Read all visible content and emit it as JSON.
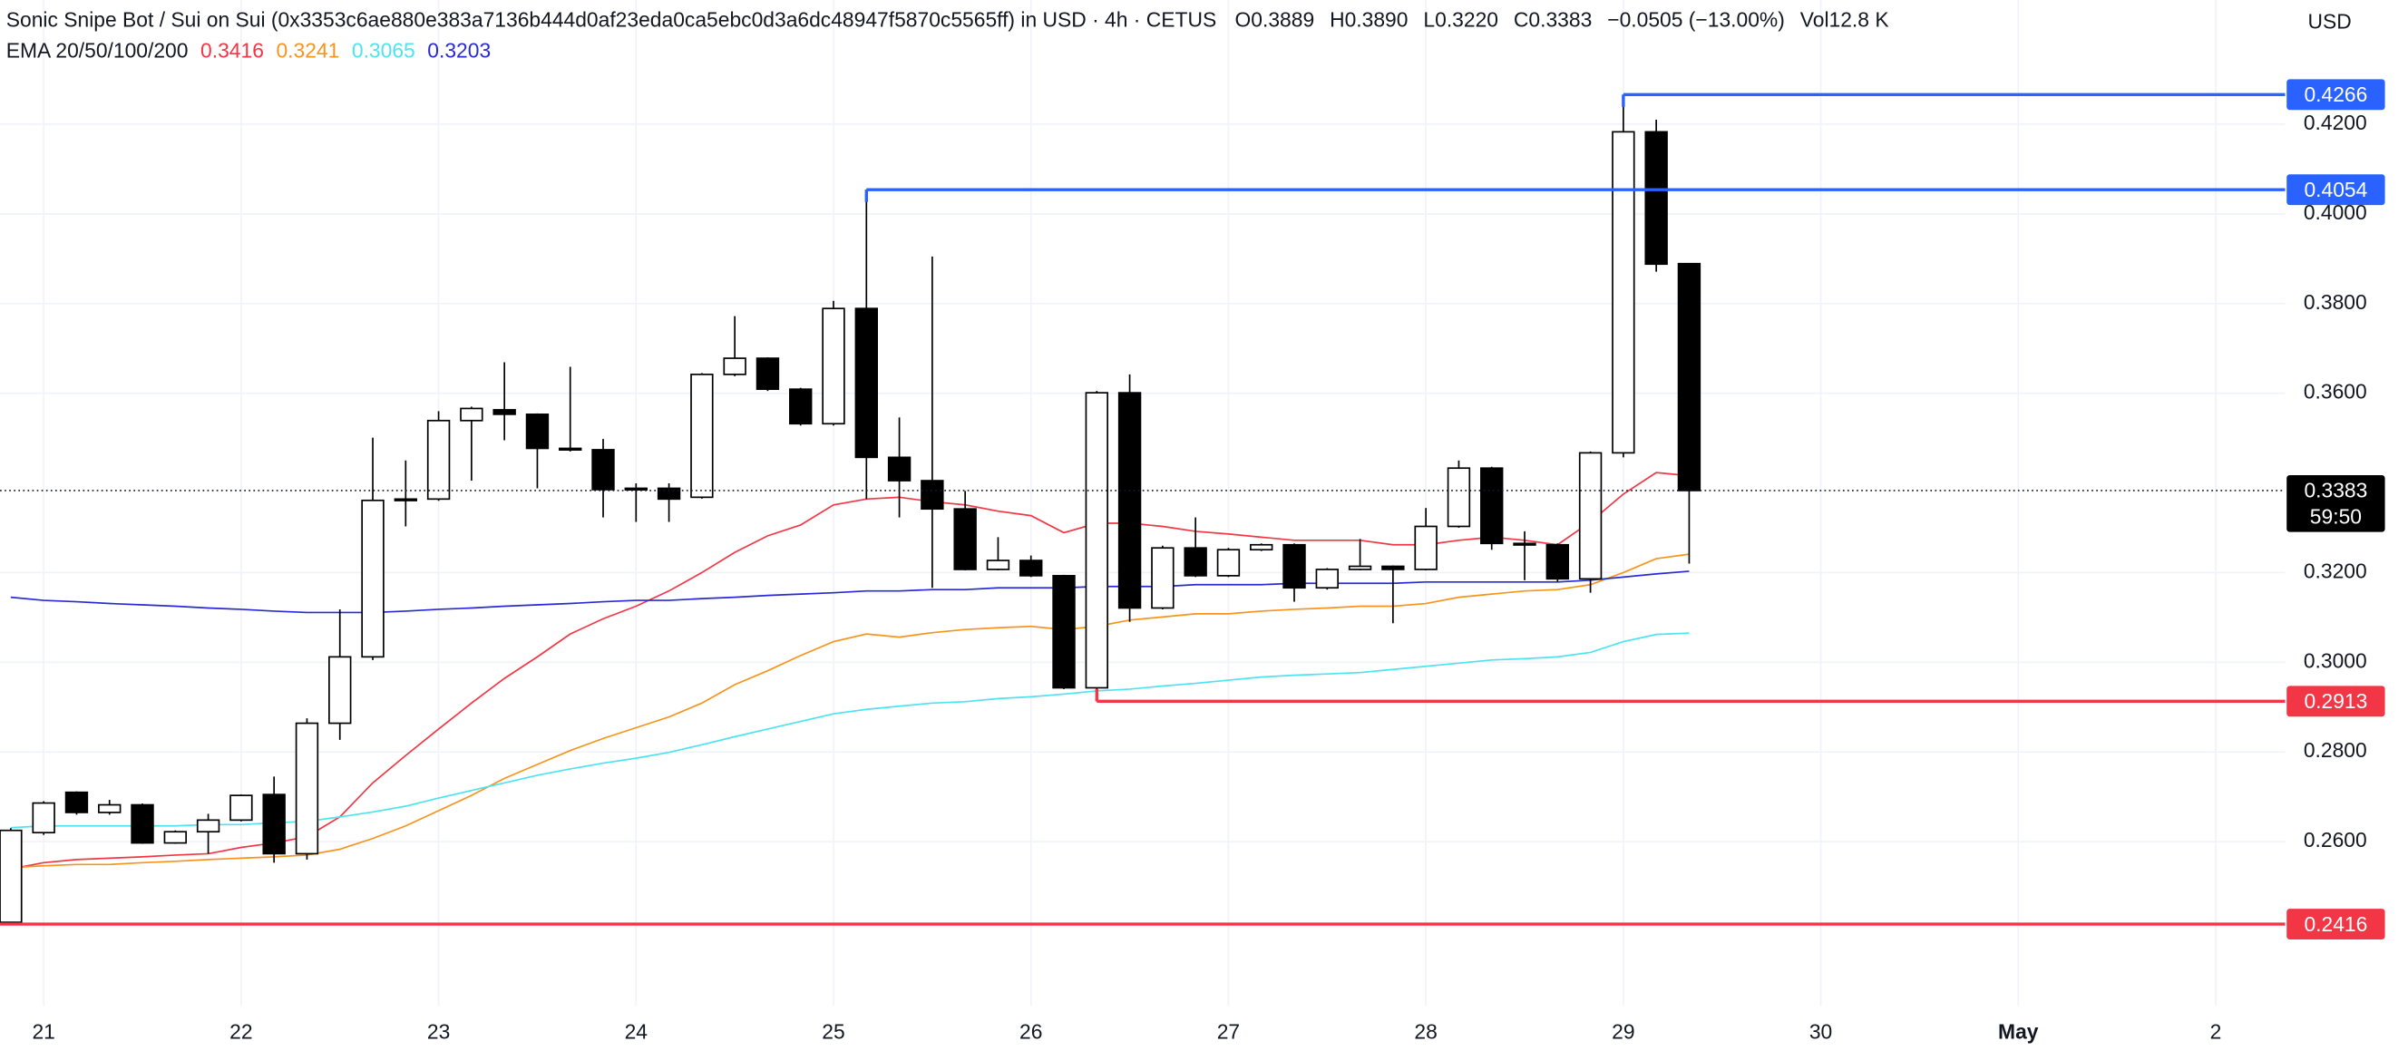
{
  "chart_data": {
    "type": "candlestick",
    "header": {
      "title": "Sonic Snipe Bot / Sui on Sui (0x3353c6ae880e383a7136b444d0af23eda0ca5ebc0d3a6dc48947f5870c5565ff) in USD · 4h · CETUS",
      "ohlc": [
        {
          "label": "O",
          "value": "0.3889"
        },
        {
          "label": "H",
          "value": "0.3890"
        },
        {
          "label": "L",
          "value": "0.3220"
        },
        {
          "label": "C",
          "value": "0.3383"
        }
      ],
      "change": "−0.0505 (−13.00%)",
      "volume_label": "Vol",
      "volume": "12.8 K"
    },
    "currency": "USD",
    "ema_legend": "EMA 20/50/100/200",
    "countdown": "59:50",
    "categories": [
      null,
      "21",
      null,
      null,
      null,
      null,
      null,
      "22",
      null,
      null,
      null,
      null,
      null,
      "23",
      null,
      null,
      null,
      null,
      null,
      "24",
      null,
      null,
      null,
      null,
      null,
      "25",
      null,
      null,
      null,
      null,
      null,
      "26",
      null,
      null,
      null,
      null,
      null,
      "27",
      null,
      null,
      null,
      null,
      null,
      "28",
      null,
      null,
      null,
      null,
      null,
      "29",
      null,
      null,
      null,
      null,
      null,
      "30",
      null,
      null,
      null,
      null,
      null,
      "May",
      null,
      null,
      null,
      null,
      null,
      "2",
      null,
      null
    ],
    "open": [
      0.242,
      0.262,
      0.271,
      0.2665,
      0.2682,
      0.2597,
      0.2622,
      0.2648,
      0.2705,
      0.2573,
      0.2864,
      0.3012,
      0.3361,
      0.3364,
      0.3539,
      0.3563,
      0.3553,
      0.3477,
      0.3474,
      0.3385,
      0.3388,
      0.3368,
      0.3642,
      0.3678,
      0.3609,
      0.3532,
      0.3789,
      0.3457,
      0.3405,
      0.3342,
      0.3207,
      0.3227,
      0.3193,
      0.2943,
      0.3601,
      0.3121,
      0.3255,
      0.3193,
      0.3251,
      0.3262,
      0.3166,
      0.3207,
      0.3214,
      0.3207,
      0.3303,
      0.3433,
      0.3265,
      0.3262,
      0.3186,
      0.3467,
      0.4183,
      0.3889,
      null,
      null,
      null,
      null,
      null,
      null,
      null,
      null,
      null,
      null,
      null,
      null,
      null,
      null,
      null,
      null,
      null,
      null
    ],
    "high": [
      0.263,
      0.269,
      0.2712,
      0.2693,
      0.2685,
      0.2625,
      0.2662,
      0.2705,
      0.2745,
      0.2875,
      0.3118,
      0.3501,
      0.345,
      0.356,
      0.357,
      0.3669,
      0.3555,
      0.3659,
      0.3498,
      0.3399,
      0.3399,
      0.3645,
      0.3772,
      0.368,
      0.3612,
      0.3806,
      0.4054,
      0.3546,
      0.3905,
      0.3382,
      0.3279,
      0.3238,
      0.3195,
      0.3605,
      0.3642,
      0.326,
      0.3323,
      0.3255,
      0.3265,
      0.3265,
      0.321,
      0.3275,
      0.3216,
      0.3344,
      0.345,
      0.3436,
      0.3292,
      0.3265,
      0.347,
      0.4266,
      0.421,
      0.389,
      null,
      null,
      null,
      null,
      null,
      null,
      null,
      null,
      null,
      null,
      null,
      null,
      null,
      null,
      null,
      null,
      null,
      null
    ],
    "low": [
      0.2416,
      0.2615,
      0.266,
      0.266,
      0.2595,
      0.2595,
      0.2573,
      0.2645,
      0.2553,
      0.256,
      0.2827,
      0.3005,
      0.3303,
      0.336,
      0.3405,
      0.3495,
      0.3388,
      0.347,
      0.3323,
      0.3313,
      0.3313,
      0.3365,
      0.3638,
      0.3605,
      0.3528,
      0.3528,
      0.3364,
      0.3323,
      0.3166,
      0.3205,
      0.3205,
      0.319,
      0.294,
      0.2913,
      0.309,
      0.3118,
      0.319,
      0.319,
      0.3248,
      0.3135,
      0.3162,
      0.3205,
      0.3087,
      0.3205,
      0.33,
      0.3251,
      0.3183,
      0.318,
      0.3155,
      0.3457,
      0.3871,
      0.322,
      null,
      null,
      null,
      null,
      null,
      null,
      null,
      null,
      null,
      null,
      null,
      null,
      null,
      null,
      null,
      null,
      null,
      null
    ],
    "close": [
      0.2625,
      0.2686,
      0.2665,
      0.2682,
      0.2597,
      0.2622,
      0.2648,
      0.2703,
      0.2573,
      0.2864,
      0.3012,
      0.3361,
      0.3364,
      0.3539,
      0.3566,
      0.3553,
      0.3477,
      0.3474,
      0.3385,
      0.3388,
      0.3364,
      0.3642,
      0.3678,
      0.3609,
      0.3532,
      0.3789,
      0.3457,
      0.3405,
      0.3342,
      0.3207,
      0.3227,
      0.3193,
      0.2943,
      0.3601,
      0.3121,
      0.3255,
      0.3193,
      0.3251,
      0.3262,
      0.3166,
      0.3207,
      0.3214,
      0.3207,
      0.3303,
      0.3433,
      0.3265,
      0.3262,
      0.3186,
      0.3467,
      0.4183,
      0.3888,
      0.3383,
      null,
      null,
      null,
      null,
      null,
      null,
      null,
      null,
      null,
      null,
      null,
      null,
      null,
      null,
      null,
      null,
      null,
      null
    ],
    "up_color": "#ffffff",
    "down_color": "#000000",
    "series": [
      {
        "color": "#f23645",
        "values": [
          0.2539,
          0.2553,
          0.256,
          0.2563,
          0.2566,
          0.257,
          0.2573,
          0.2587,
          0.2597,
          0.2611,
          0.2655,
          0.2731,
          0.2792,
          0.2851,
          0.2909,
          0.2964,
          0.3012,
          0.3063,
          0.3097,
          0.3125,
          0.3159,
          0.32,
          0.3245,
          0.3282,
          0.3306,
          0.3351,
          0.3364,
          0.3368,
          0.3358,
          0.3351,
          0.3337,
          0.3327,
          0.3289,
          0.331,
          0.331,
          0.3303,
          0.3292,
          0.3286,
          0.3279,
          0.3272,
          0.3272,
          0.3272,
          0.3262,
          0.3262,
          0.3272,
          0.3279,
          0.3272,
          0.3262,
          0.3313,
          0.3375,
          0.3423,
          0.3416,
          null,
          null,
          null,
          null,
          null,
          null,
          null,
          null,
          null,
          null,
          null,
          null,
          null,
          null,
          null,
          null,
          null,
          null
        ]
      },
      {
        "color": "#f7941d",
        "values": [
          0.2542,
          0.2546,
          0.2549,
          0.2549,
          0.2553,
          0.2556,
          0.256,
          0.2563,
          0.2566,
          0.257,
          0.2583,
          0.2607,
          0.2635,
          0.2669,
          0.2703,
          0.2741,
          0.2772,
          0.2803,
          0.283,
          0.2854,
          0.2878,
          0.2909,
          0.295,
          0.2981,
          0.3015,
          0.3046,
          0.3063,
          0.3056,
          0.3066,
          0.3073,
          0.3077,
          0.308,
          0.3073,
          0.308,
          0.3094,
          0.3101,
          0.3108,
          0.3108,
          0.3114,
          0.3118,
          0.3121,
          0.3125,
          0.3125,
          0.3131,
          0.3145,
          0.3152,
          0.3159,
          0.3162,
          0.3173,
          0.32,
          0.3231,
          0.3241,
          null,
          null,
          null,
          null,
          null,
          null,
          null,
          null,
          null,
          null,
          null,
          null,
          null,
          null,
          null,
          null,
          null,
          null
        ]
      },
      {
        "color": "#4de3ef",
        "values": [
          0.2631,
          0.2635,
          0.2635,
          0.2635,
          0.2635,
          0.2635,
          0.2638,
          0.2638,
          0.2642,
          0.2645,
          0.2655,
          0.2666,
          0.2679,
          0.2697,
          0.2714,
          0.2731,
          0.2748,
          0.2762,
          0.2775,
          0.2786,
          0.2799,
          0.2816,
          0.2834,
          0.2851,
          0.2868,
          0.2885,
          0.2895,
          0.2902,
          0.2909,
          0.2912,
          0.2919,
          0.2923,
          0.2929,
          0.2936,
          0.294,
          0.2947,
          0.2953,
          0.296,
          0.2967,
          0.2971,
          0.2974,
          0.2977,
          0.2984,
          0.2991,
          0.2998,
          0.3005,
          0.3008,
          0.3012,
          0.3022,
          0.3046,
          0.3062,
          0.3065,
          null,
          null,
          null,
          null,
          null,
          null,
          null,
          null,
          null,
          null,
          null,
          null,
          null,
          null,
          null,
          null,
          null,
          null
        ]
      },
      {
        "color": "#2a2ad4",
        "values": [
          0.3145,
          0.3138,
          0.3135,
          0.3131,
          0.3128,
          0.3125,
          0.3121,
          0.3118,
          0.3114,
          0.3111,
          0.3111,
          0.3111,
          0.3114,
          0.3118,
          0.3121,
          0.3125,
          0.3128,
          0.3131,
          0.3135,
          0.3138,
          0.3138,
          0.3142,
          0.3145,
          0.3149,
          0.3152,
          0.3155,
          0.3159,
          0.3159,
          0.3162,
          0.3162,
          0.3166,
          0.3166,
          0.3166,
          0.3169,
          0.3169,
          0.3169,
          0.3173,
          0.3173,
          0.3173,
          0.3176,
          0.3176,
          0.3176,
          0.3176,
          0.3179,
          0.3179,
          0.3179,
          0.3179,
          0.3179,
          0.3183,
          0.319,
          0.3197,
          0.3203,
          null,
          null,
          null,
          null,
          null,
          null,
          null,
          null,
          null,
          null,
          null,
          null,
          null,
          null,
          null,
          null,
          null,
          null
        ]
      }
    ],
    "levels": [
      {
        "value": 0.4266,
        "color": "#2962ff",
        "anchor": "high"
      },
      {
        "value": 0.4054,
        "color": "#2962ff",
        "anchor": "high"
      },
      {
        "value": 0.2913,
        "color": "#f23645",
        "anchor": "low"
      },
      {
        "value": 0.2416,
        "color": "#f23645",
        "anchor": "low"
      }
    ],
    "ylim": [
      0.2234,
      0.4477
    ],
    "yticks": [
      {
        "value": 0.26,
        "label": "0.2600"
      },
      {
        "value": 0.28,
        "label": "0.2800"
      },
      {
        "value": 0.3,
        "label": "0.3000"
      },
      {
        "value": 0.32,
        "label": "0.3200"
      },
      {
        "value": 0.36,
        "label": "0.3600"
      },
      {
        "value": 0.38,
        "label": "0.3800"
      },
      {
        "value": 0.4,
        "label": "0.4000"
      },
      {
        "value": 0.42,
        "label": "0.4200"
      }
    ],
    "grid": true
  }
}
